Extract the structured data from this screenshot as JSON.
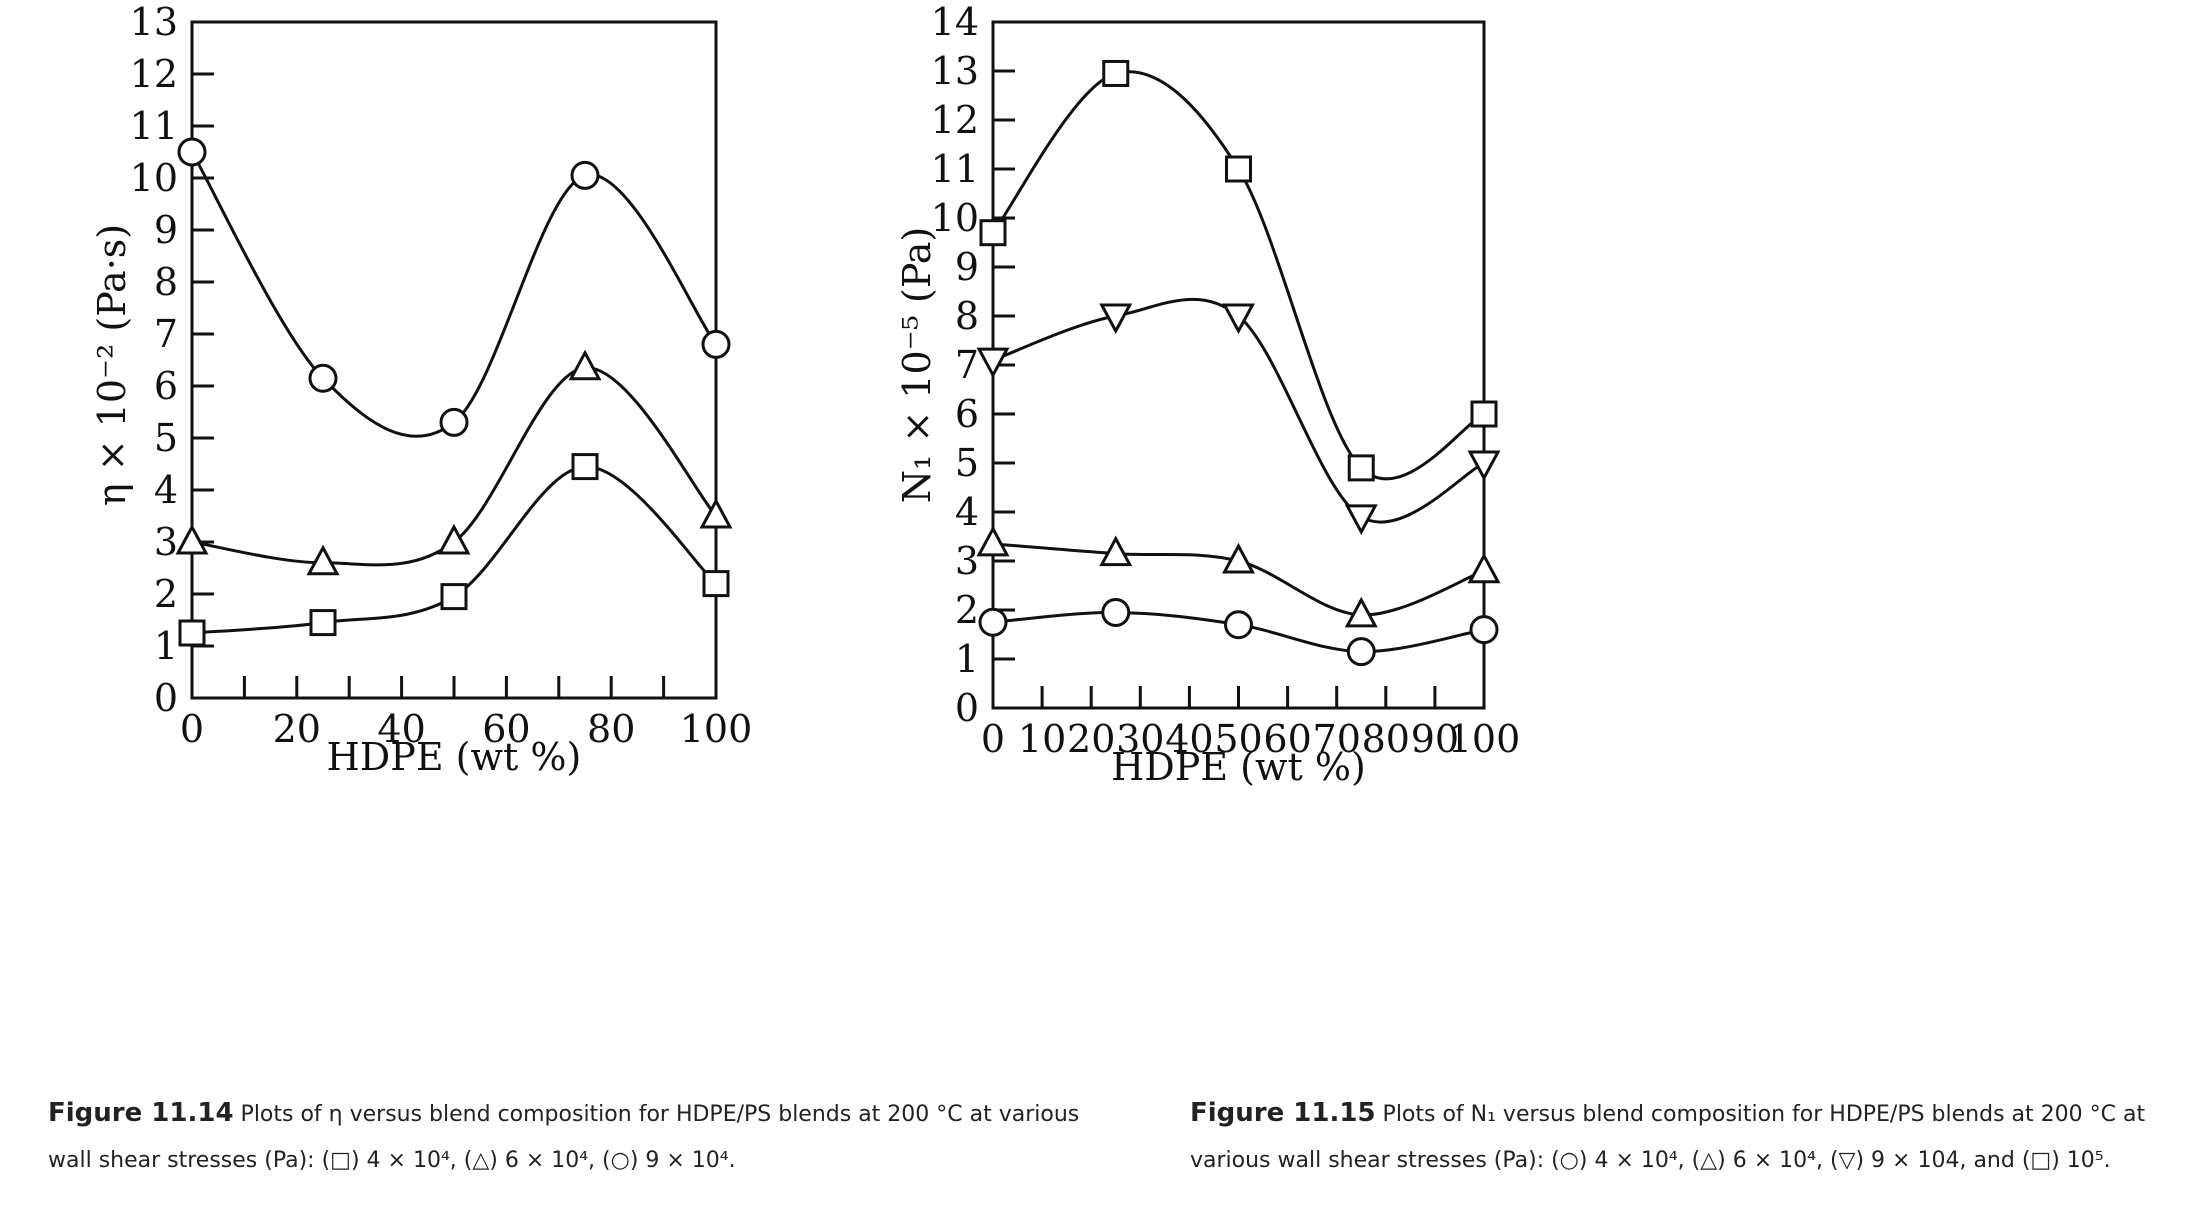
{
  "chart_data": [
    {
      "type": "line",
      "xlabel": "HDPE (wt %)",
      "ylabel": "η × 10⁻² (Pa·s)",
      "xlim": [
        0,
        100
      ],
      "ylim": [
        0,
        13
      ],
      "xticks": [
        0,
        20,
        40,
        60,
        80,
        100
      ],
      "xminor": [
        10,
        30,
        50,
        70,
        90
      ],
      "yticks": [
        0,
        1,
        2,
        3,
        4,
        5,
        6,
        7,
        8,
        9,
        10,
        11,
        12,
        13
      ],
      "x": [
        0,
        25,
        50,
        75,
        100
      ],
      "series": [
        {
          "marker": "square",
          "values": [
            1.25,
            1.45,
            1.95,
            4.45,
            2.2
          ]
        },
        {
          "marker": "triangle",
          "values": [
            3.0,
            2.6,
            3.0,
            6.35,
            3.5
          ]
        },
        {
          "marker": "circle",
          "values": [
            10.5,
            6.15,
            5.3,
            10.05,
            6.8
          ]
        }
      ],
      "caption": {
        "label": "Figure 11.14",
        "text": "Plots of η versus blend composition for HDPE/PS blends at 200 °C at various wall shear stresses (Pa): (□) 4 × 10⁴, (△) 6 × 10⁴, (○) 9 × 10⁴."
      }
    },
    {
      "type": "line",
      "xlabel": "HDPE (wt %)",
      "ylabel": "N₁ × 10⁻⁵ (Pa)",
      "xlim": [
        0,
        100
      ],
      "ylim": [
        0,
        14
      ],
      "xticks": [
        0,
        10,
        20,
        30,
        40,
        50,
        60,
        70,
        80,
        90,
        100
      ],
      "yticks": [
        0,
        1,
        2,
        3,
        4,
        5,
        6,
        7,
        8,
        9,
        10,
        11,
        12,
        13,
        14
      ],
      "x": [
        0,
        25,
        50,
        75,
        100
      ],
      "series": [
        {
          "marker": "circle",
          "values": [
            1.75,
            1.95,
            1.7,
            1.15,
            1.6
          ]
        },
        {
          "marker": "triangle",
          "values": [
            3.35,
            3.15,
            3.0,
            1.9,
            2.8
          ]
        },
        {
          "marker": "triangle-down",
          "values": [
            7.1,
            8.0,
            8.0,
            3.9,
            5.0
          ]
        },
        {
          "marker": "square",
          "values": [
            9.7,
            12.95,
            11.0,
            4.9,
            6.0
          ]
        }
      ],
      "caption": {
        "label": "Figure 11.15",
        "text": "Plots of N₁ versus blend composition for HDPE/PS blends at 200 °C at various wall shear stresses (Pa): (○) 4 × 10⁴, (△) 6 × 10⁴, (▽) 9 × 104, and (□) 10⁵."
      }
    }
  ]
}
